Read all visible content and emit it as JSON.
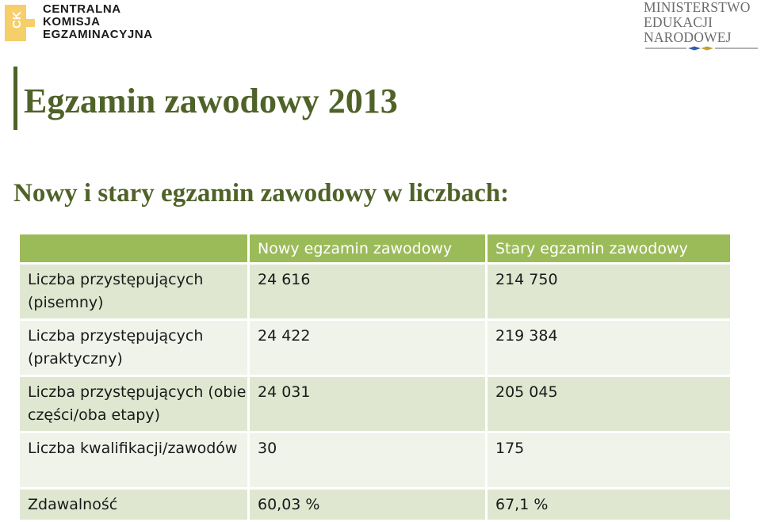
{
  "header": {
    "cke_logo": {
      "lines": [
        "CENTRALNA",
        "KOMISJA",
        "EGZAMINACYJNA"
      ],
      "mark_text": "CK",
      "color": "#f6cf6b"
    },
    "men_logo": {
      "lines": [
        "MINISTERSTWO",
        "EDUKACJI",
        "NARODOWEJ"
      ]
    }
  },
  "title": "Egzamin zawodowy 2013",
  "subtitle": "Nowy i stary egzamin zawodowy w liczbach:",
  "colors": {
    "title": "#4f6228",
    "table_header": "#9bbb59",
    "row_odd": "#dfe7d0",
    "row_even": "#eff3e9"
  },
  "table": {
    "headers": [
      "",
      "Nowy egzamin zawodowy",
      "Stary egzamin zawodowy"
    ],
    "rows": [
      [
        "Liczba przystępujących (pisemny)",
        "24 616",
        "214 750"
      ],
      [
        "Liczba przystępujących (praktyczny)",
        "24 422",
        "219 384"
      ],
      [
        "Liczba przystępujących (obie części/oba etapy)",
        "24 031",
        "205 045"
      ],
      [
        "Liczba kwalifikacji/zawodów",
        "30",
        "175"
      ],
      [
        "Zdawalność",
        "60,03 %",
        "67,1 %"
      ]
    ]
  }
}
